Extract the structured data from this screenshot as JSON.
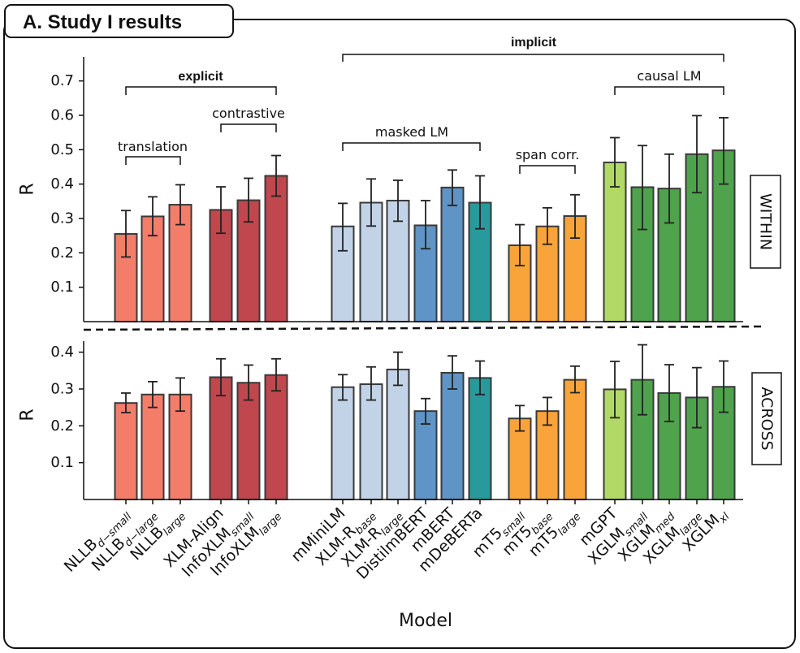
{
  "header": {
    "label": "A.  Study I results"
  },
  "chart_data": {
    "type": "bar",
    "xlabel": "Model",
    "categories": [
      {
        "base": "NLLB",
        "sub": "d−small"
      },
      {
        "base": "NLLB",
        "sub": "d−large"
      },
      {
        "base": "NLLB",
        "sub": "large"
      },
      {
        "base": "XLM-Align",
        "sub": ""
      },
      {
        "base": "InfoXLM",
        "sub": "small"
      },
      {
        "base": "InfoXLM",
        "sub": "large"
      },
      {
        "base": "mMiniLM",
        "sub": ""
      },
      {
        "base": "XLM-R",
        "sub": "base"
      },
      {
        "base": "XLM-R",
        "sub": "large"
      },
      {
        "base": "DistilmBERT",
        "sub": ""
      },
      {
        "base": "mBERT",
        "sub": ""
      },
      {
        "base": "mDeBERTa",
        "sub": ""
      },
      {
        "base": "mT5",
        "sub": "small"
      },
      {
        "base": "mT5",
        "sub": "base"
      },
      {
        "base": "mT5",
        "sub": "large"
      },
      {
        "base": "mGPT",
        "sub": ""
      },
      {
        "base": "XGLM",
        "sub": "small"
      },
      {
        "base": "XGLM",
        "sub": "med"
      },
      {
        "base": "XGLM",
        "sub": "large"
      },
      {
        "base": "XGLM",
        "sub": "xl"
      }
    ],
    "colors": [
      "#f47d6a",
      "#f47d6a",
      "#f47d6a",
      "#c0474e",
      "#c0474e",
      "#c0474e",
      "#c2d3e8",
      "#c2d3e8",
      "#c2d3e8",
      "#5f94c6",
      "#5f94c6",
      "#299a9c",
      "#f9a43a",
      "#f9a43a",
      "#f9a43a",
      "#b2d966",
      "#4ea34c",
      "#4ea34c",
      "#4ea34c",
      "#4ea34c"
    ],
    "panels": [
      {
        "name": "WITHIN",
        "ylabel": "R",
        "ylim": [
          0,
          0.77
        ],
        "yticks": [
          "0.1",
          "0.2",
          "0.3",
          "0.4",
          "0.5",
          "0.6",
          "0.7"
        ],
        "values": [
          0.255,
          0.306,
          0.34,
          0.325,
          0.353,
          0.424,
          0.277,
          0.346,
          0.352,
          0.28,
          0.39,
          0.346,
          0.222,
          0.277,
          0.307,
          0.463,
          0.391,
          0.387,
          0.487,
          0.498
        ],
        "err_low": [
          0.188,
          0.25,
          0.282,
          0.257,
          0.29,
          0.365,
          0.206,
          0.278,
          0.292,
          0.212,
          0.338,
          0.27,
          0.163,
          0.225,
          0.243,
          0.392,
          0.268,
          0.287,
          0.375,
          0.4
        ],
        "err_high": [
          0.323,
          0.363,
          0.398,
          0.392,
          0.417,
          0.483,
          0.344,
          0.415,
          0.411,
          0.352,
          0.441,
          0.424,
          0.282,
          0.331,
          0.369,
          0.535,
          0.512,
          0.487,
          0.599,
          0.593
        ]
      },
      {
        "name": "ACROSS",
        "ylabel": "R",
        "ylim": [
          0,
          0.43
        ],
        "yticks": [
          "0.1",
          "0.2",
          "0.3",
          "0.4"
        ],
        "values": [
          0.262,
          0.285,
          0.285,
          0.332,
          0.317,
          0.338,
          0.305,
          0.313,
          0.353,
          0.24,
          0.344,
          0.33,
          0.22,
          0.24,
          0.325,
          0.299,
          0.325,
          0.289,
          0.277,
          0.306
        ],
        "err_low": [
          0.236,
          0.25,
          0.24,
          0.282,
          0.27,
          0.295,
          0.27,
          0.27,
          0.31,
          0.205,
          0.3,
          0.285,
          0.186,
          0.202,
          0.29,
          0.222,
          0.23,
          0.212,
          0.195,
          0.237
        ],
        "err_high": [
          0.289,
          0.32,
          0.33,
          0.382,
          0.365,
          0.382,
          0.339,
          0.36,
          0.4,
          0.274,
          0.39,
          0.376,
          0.255,
          0.277,
          0.362,
          0.375,
          0.42,
          0.366,
          0.358,
          0.376
        ]
      }
    ],
    "annotations": {
      "explicit": "explicit",
      "implicit": "implicit",
      "translation": "translation",
      "contrastive": "contrastive",
      "masked_lm": "masked LM",
      "span_corr": "span corr.",
      "causal_lm": "causal LM"
    }
  }
}
